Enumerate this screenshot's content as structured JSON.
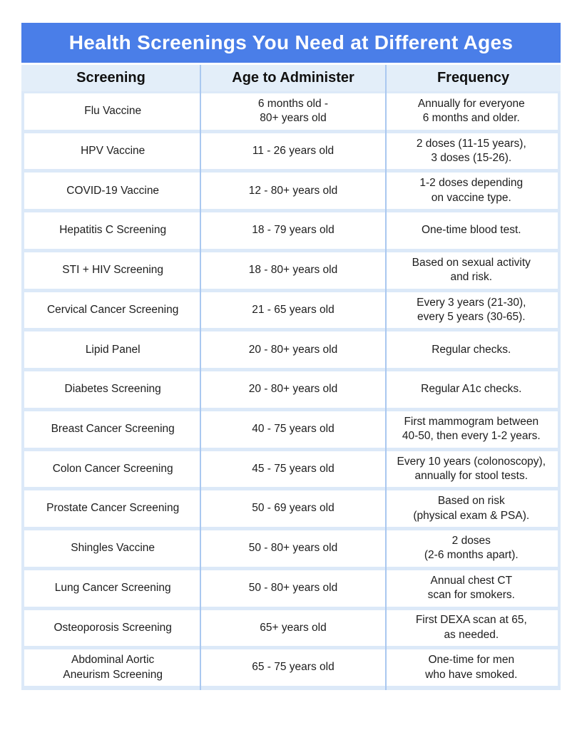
{
  "page": {
    "title": "Health Screenings You Need at Different Ages"
  },
  "colors": {
    "title_bar_bg": "#4a7ee8",
    "title_text": "#ffffff",
    "table_bg": "#dce9f8",
    "header_row_bg": "#e3eef9",
    "row_bg": "#ffffff",
    "column_divider": "#aac8f0",
    "body_text": "#1d1d1d"
  },
  "table": {
    "headers": [
      "Screening",
      "Age to Administer",
      "Frequency"
    ],
    "rows": [
      {
        "screening": "Flu Vaccine",
        "age": "6 months old -\n80+ years old",
        "frequency": "Annually for everyone\n6 months and older."
      },
      {
        "screening": "HPV Vaccine",
        "age": "11 - 26 years old",
        "frequency": "2 doses (11-15 years),\n3 doses (15-26)."
      },
      {
        "screening": "COVID-19 Vaccine",
        "age": "12 - 80+ years old",
        "frequency": "1-2 doses depending\non vaccine type."
      },
      {
        "screening": "Hepatitis C Screening",
        "age": "18 - 79 years old",
        "frequency": "One-time blood test."
      },
      {
        "screening": "STI + HIV Screening",
        "age": "18 - 80+ years old",
        "frequency": "Based on sexual activity\nand risk."
      },
      {
        "screening": "Cervical Cancer Screening",
        "age": "21 - 65 years old",
        "frequency": "Every 3 years (21-30),\nevery 5 years (30-65)."
      },
      {
        "screening": "Lipid Panel",
        "age": "20 - 80+ years old",
        "frequency": "Regular checks."
      },
      {
        "screening": "Diabetes Screening",
        "age": "20 - 80+ years old",
        "frequency": "Regular A1c checks."
      },
      {
        "screening": "Breast Cancer Screening",
        "age": "40 - 75 years old",
        "frequency": "First mammogram between\n40-50, then every 1-2 years."
      },
      {
        "screening": "Colon Cancer Screening",
        "age": "45 - 75 years old",
        "frequency": "Every 10 years (colonoscopy),\nannually for stool tests."
      },
      {
        "screening": "Prostate Cancer Screening",
        "age": "50 - 69 years old",
        "frequency": "Based on risk\n(physical exam & PSA)."
      },
      {
        "screening": "Shingles Vaccine",
        "age": "50 - 80+ years old",
        "frequency": "2 doses\n(2-6 months apart)."
      },
      {
        "screening": "Lung Cancer Screening",
        "age": "50 - 80+ years old",
        "frequency": "Annual chest CT\nscan for smokers."
      },
      {
        "screening": "Osteoporosis Screening",
        "age": "65+ years old",
        "frequency": "First DEXA scan at 65,\nas needed."
      },
      {
        "screening": "Abdominal Aortic\nAneurism Screening",
        "age": "65 - 75 years old",
        "frequency": "One-time for men\nwho have smoked."
      }
    ]
  }
}
